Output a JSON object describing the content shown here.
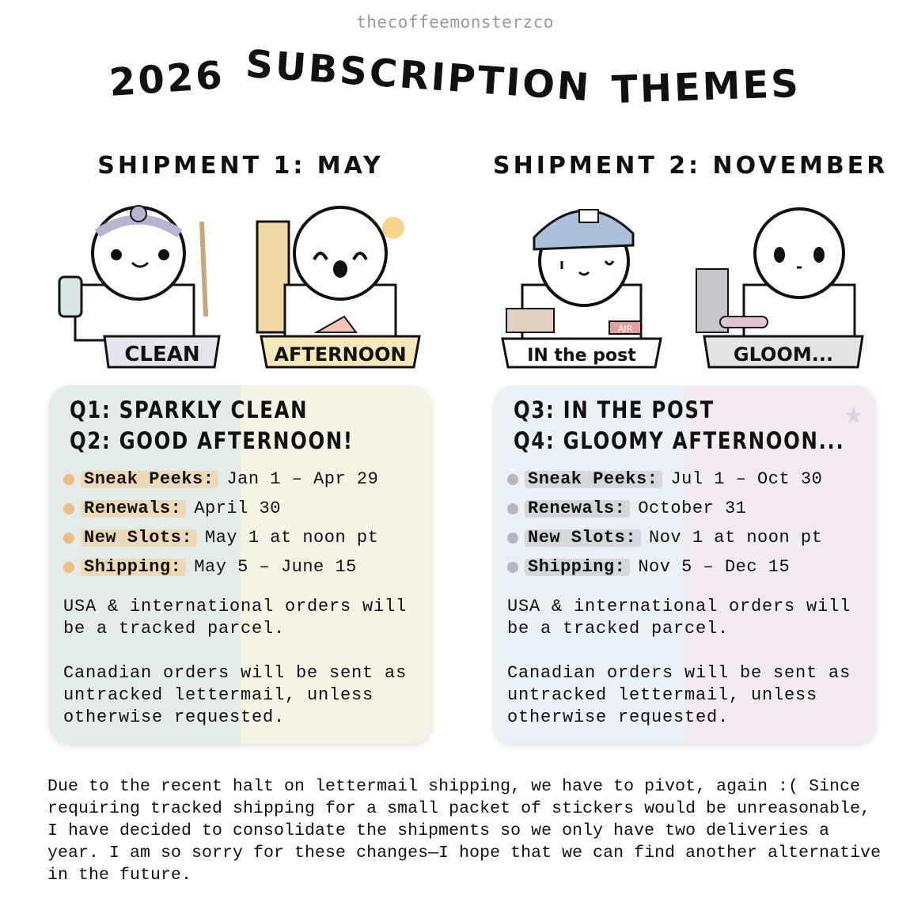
{
  "watermark": "thecoffeemonsterzco",
  "title": {
    "year": "2026",
    "word1": "SUBSCRIPTION",
    "word2": "THEMES"
  },
  "shipments": [
    {
      "heading": "SHIPMENT 1: MAY",
      "stickers": [
        {
          "label": "CLEAN"
        },
        {
          "label": "AFTERNOON"
        }
      ],
      "card": {
        "q_a": "Q1: SPARKLY CLEAN",
        "q_b": "Q2: GOOD AFTERNOON!",
        "colors": {
          "left": "#e3ece8",
          "right": "#f6f2e4",
          "highlight": "#ecd9b8",
          "bullet": "#ebbd82"
        },
        "items": [
          {
            "label": "Sneak Peeks:",
            "value": "Jan 1 – Apr 29"
          },
          {
            "label": "Renewals:",
            "value": "April 30"
          },
          {
            "label": "New Slots:",
            "value": "May 1 at noon pt"
          },
          {
            "label": "Shipping:",
            "value": "May 5 – June 15"
          }
        ],
        "para1": "USA & international orders will be a tracked parcel.",
        "para2": "Canadian orders will be sent as untracked lettermail, unless otherwise requested."
      }
    },
    {
      "heading": "SHIPMENT 2: NOVEMBER",
      "stickers": [
        {
          "label": "IN the post",
          "tag": "AIR"
        },
        {
          "label": "GLOOM..."
        }
      ],
      "card": {
        "q_a": "Q3: IN THE POST",
        "q_b": "Q4: GLOOMY AFTERNOON...",
        "colors": {
          "left": "#e9f0f6",
          "right": "#f2eaf0",
          "highlight": "#d3d7de",
          "bullet": "#b4b8c2"
        },
        "icon": "star-icon",
        "items": [
          {
            "label": "Sneak Peeks:",
            "value": "Jul 1 – Oct 30"
          },
          {
            "label": "Renewals:",
            "value": "October 31"
          },
          {
            "label": "New Slots:",
            "value": "Nov 1 at noon pt"
          },
          {
            "label": "Shipping:",
            "value": "Nov 5 – Dec 15"
          }
        ],
        "para1": "USA & international orders will be a tracked parcel.",
        "para2": "Canadian orders will be sent as untracked lettermail, unless otherwise requested."
      }
    }
  ],
  "footer": "Due to the recent halt on lettermail shipping, we have to pivot, again :( Since requiring tracked shipping for a small packet of stickers would be unreasonable, I have decided to consolidate the shipments so we only have two deliveries a year. I am so sorry for these changes—I hope that we can find another alternative in the future."
}
